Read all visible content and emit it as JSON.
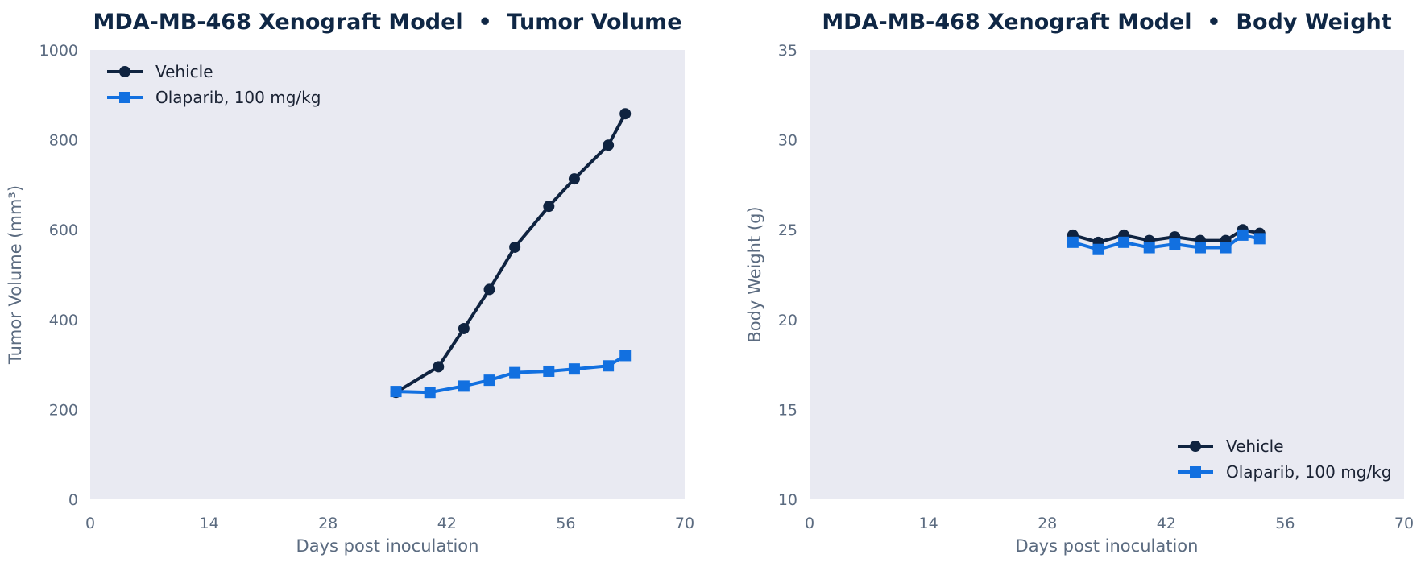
{
  "chart_data": [
    {
      "type": "line",
      "title": "MDA-MB-468 Xenograft Model  •  Tumor Volume",
      "xlabel": "Days post inoculation",
      "ylabel": "Tumor Volume (mm³)",
      "xlim": [
        0,
        70
      ],
      "ylim": [
        0,
        1000
      ],
      "xticks": [
        "0",
        "14",
        "28",
        "42",
        "56",
        "70"
      ],
      "yticks": [
        "0",
        "200",
        "400",
        "600",
        "800",
        "1000"
      ],
      "legend_position": "top-left",
      "grid": false,
      "series": [
        {
          "name": "Vehicle",
          "color": "#0f2340",
          "marker": "circle",
          "x": [
            36,
            41,
            44,
            47,
            50,
            54,
            57,
            61,
            63
          ],
          "y": [
            238,
            295,
            380,
            467,
            561,
            652,
            713,
            788,
            858
          ]
        },
        {
          "name": "Olaparib, 100 mg/kg",
          "color": "#1270e0",
          "marker": "square",
          "x": [
            36,
            40,
            44,
            47,
            50,
            54,
            57,
            61,
            63
          ],
          "y": [
            240,
            238,
            252,
            265,
            282,
            285,
            290,
            297,
            320
          ]
        }
      ]
    },
    {
      "type": "line",
      "title": "MDA-MB-468 Xenograft Model  •  Body Weight",
      "xlabel": "Days post inoculation",
      "ylabel": "Body Weight (g)",
      "xlim": [
        0,
        70
      ],
      "ylim": [
        10,
        35
      ],
      "xticks": [
        "0",
        "14",
        "28",
        "42",
        "56",
        "70"
      ],
      "yticks": [
        "10",
        "15",
        "20",
        "25",
        "30",
        "35"
      ],
      "legend_position": "bottom-right",
      "grid": false,
      "series": [
        {
          "name": "Vehicle",
          "color": "#0f2340",
          "marker": "circle",
          "x": [
            31,
            34,
            37,
            40,
            43,
            46,
            49,
            51,
            53
          ],
          "y": [
            24.7,
            24.3,
            24.7,
            24.4,
            24.6,
            24.4,
            24.4,
            25.0,
            24.8
          ]
        },
        {
          "name": "Olaparib, 100 mg/kg",
          "color": "#1270e0",
          "marker": "square",
          "x": [
            31,
            34,
            37,
            40,
            43,
            46,
            49,
            51,
            53
          ],
          "y": [
            24.3,
            23.9,
            24.3,
            24.0,
            24.2,
            24.0,
            24.0,
            24.7,
            24.5
          ]
        }
      ]
    }
  ]
}
